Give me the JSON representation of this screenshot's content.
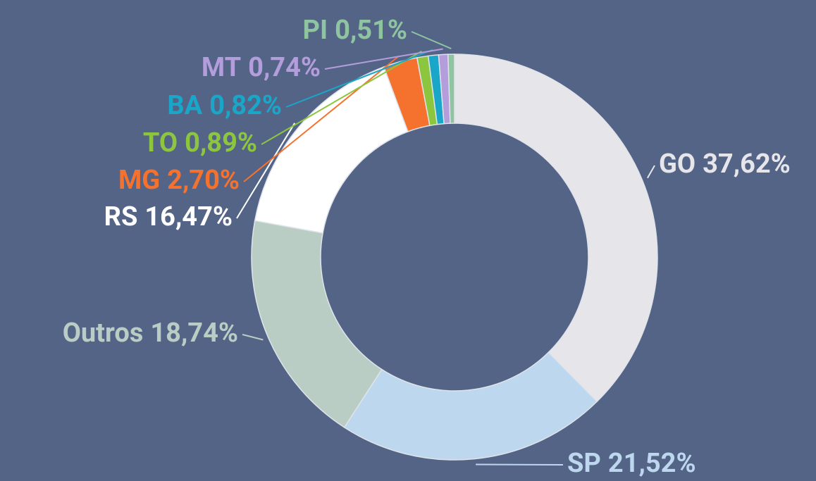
{
  "chart_data": {
    "type": "donut",
    "categories": [
      "GO",
      "SP",
      "Outros",
      "RS",
      "MG",
      "TO",
      "BA",
      "MT",
      "PI"
    ],
    "values": [
      37.62,
      21.52,
      18.74,
      16.47,
      2.7,
      0.89,
      0.82,
      0.74,
      0.51
    ],
    "value_labels": [
      "37,62%",
      "21,52%",
      "18,74%",
      "16,47%",
      "2,70%",
      "0,89%",
      "0,82%",
      "0,74%",
      "0,51%"
    ],
    "colors": [
      "#e6e6ea",
      "#bdd7ee",
      "#b9cdc4",
      "#ffffff",
      "#f5722e",
      "#8cc63e",
      "#1aa6c8",
      "#b39ddb",
      "#8fc4a0"
    ]
  }
}
